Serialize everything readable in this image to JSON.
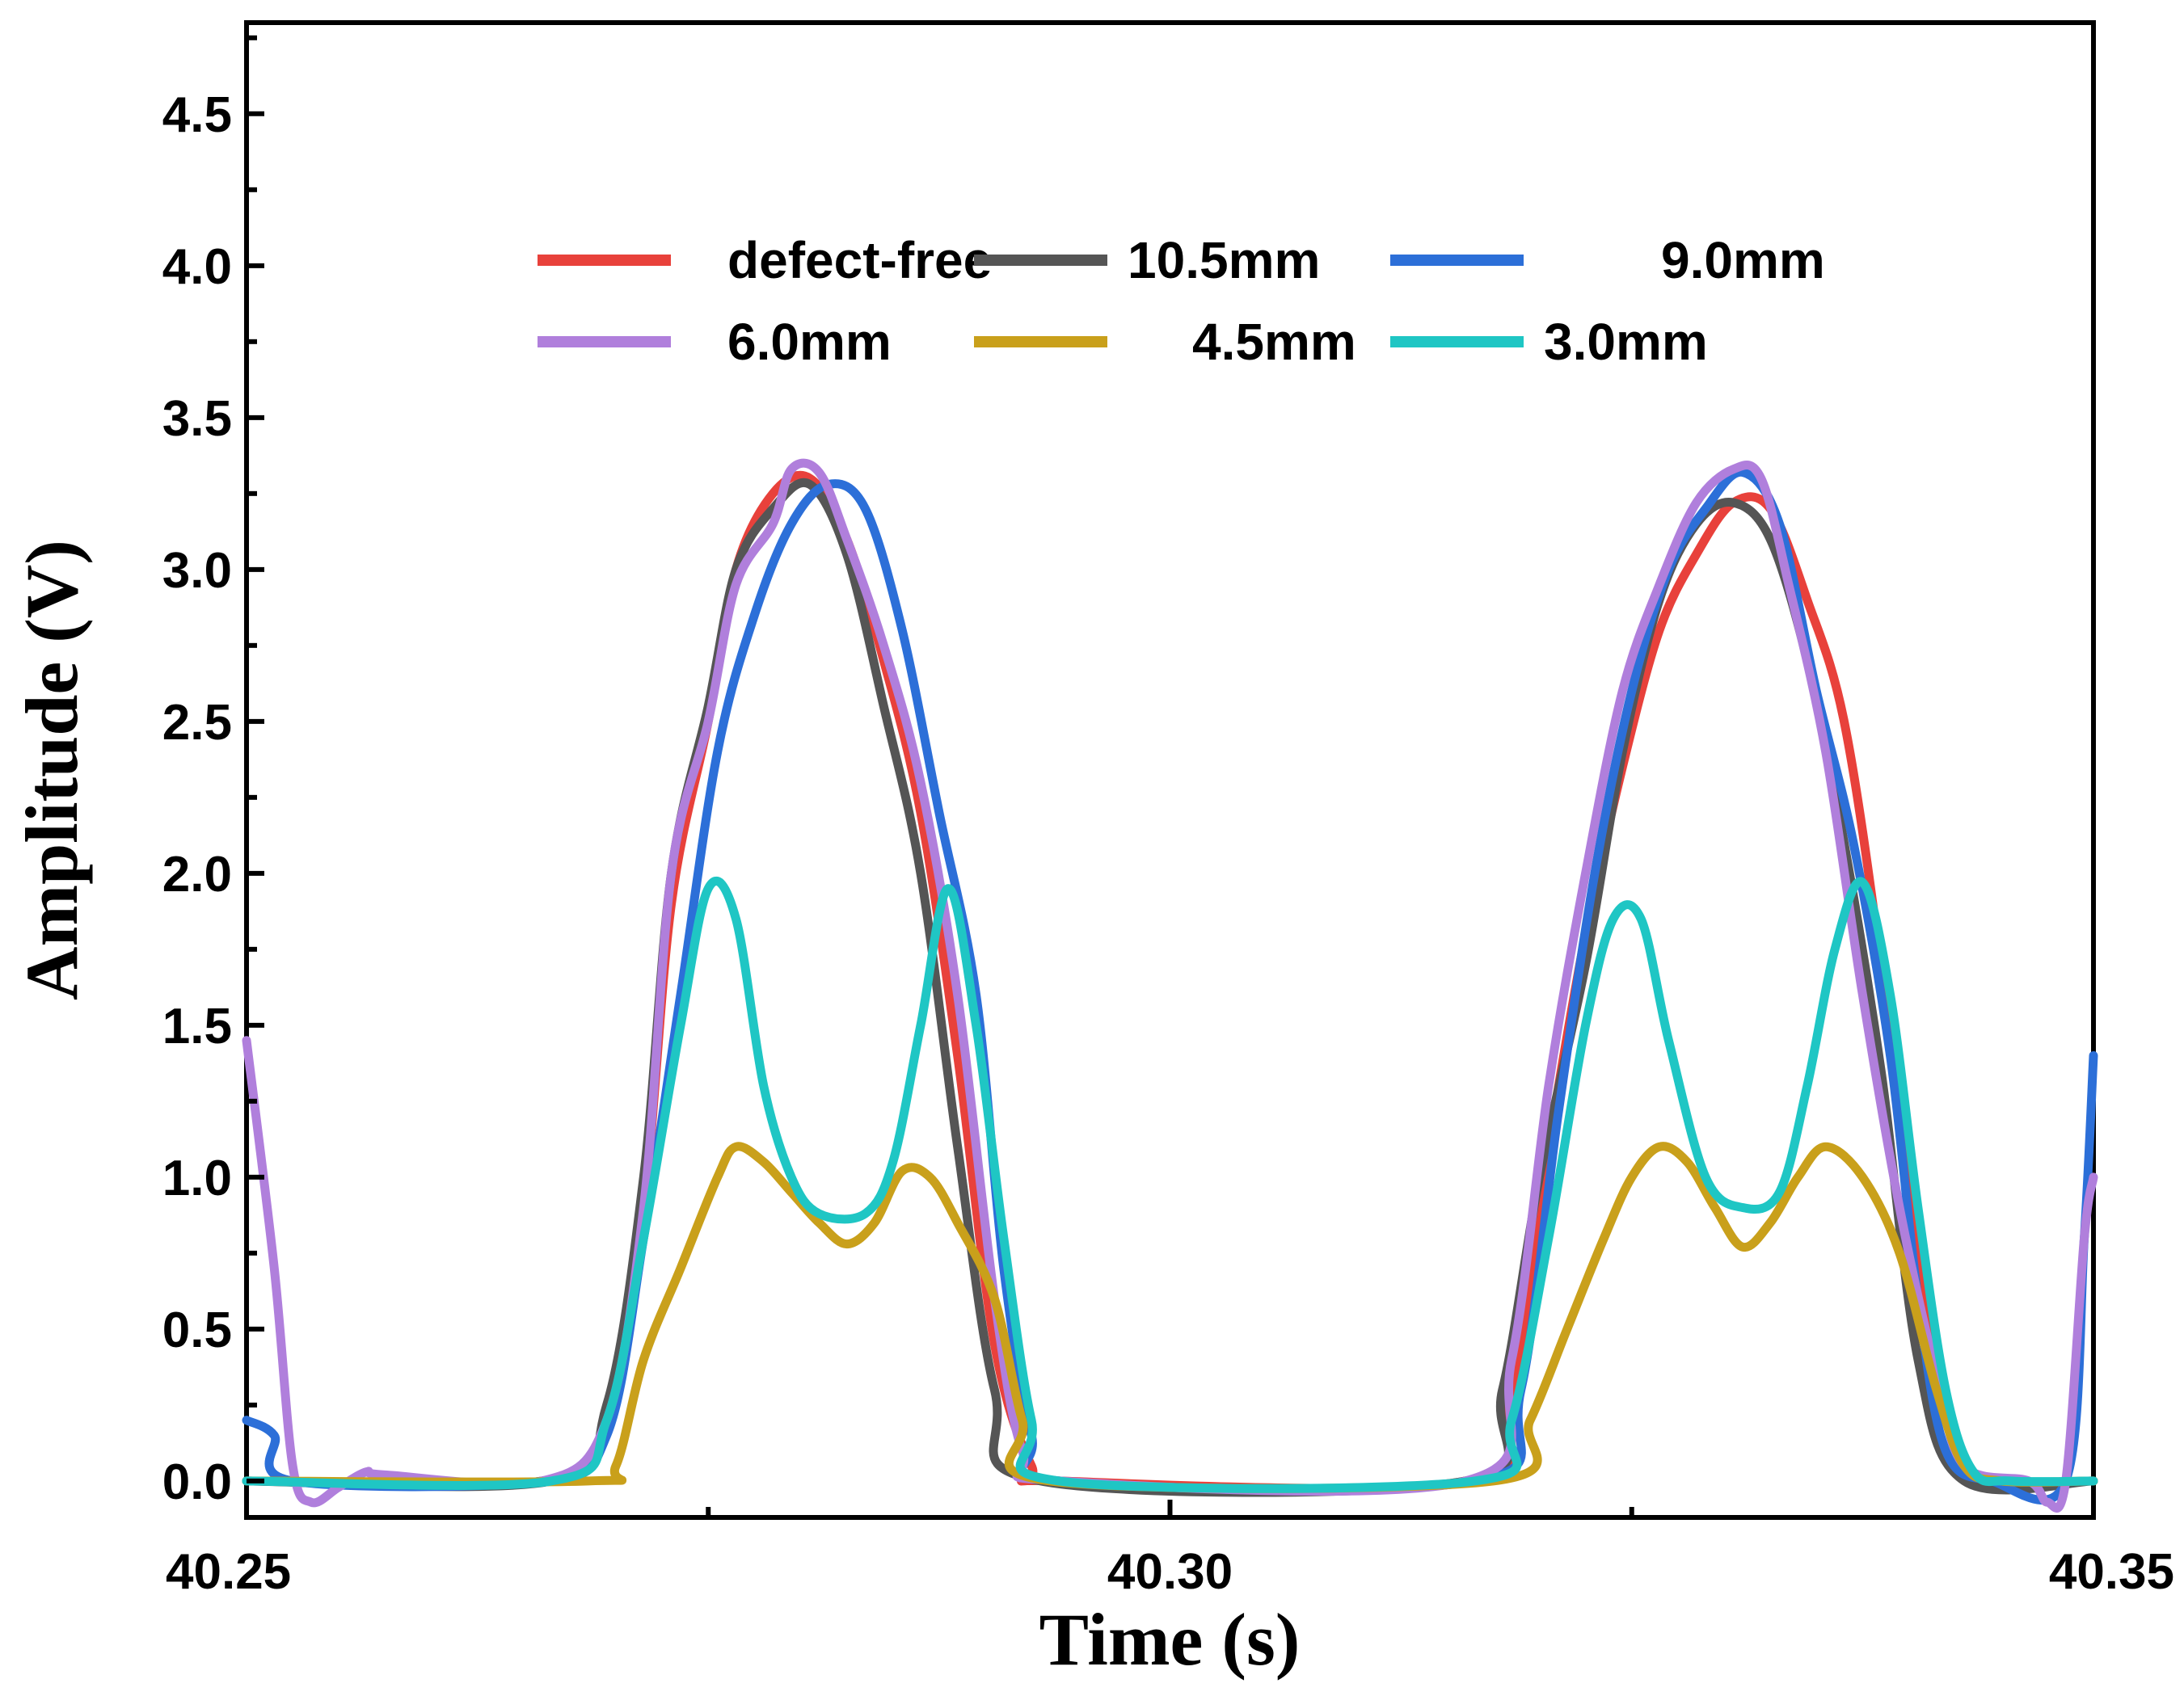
{
  "chart_data": {
    "type": "line",
    "xlabel": "Time (s)",
    "ylabel": "Amplitude (V)",
    "xlim": [
      40.25,
      40.35
    ],
    "ylim": [
      -0.12,
      4.8
    ],
    "x_ticks": [
      40.25,
      40.3,
      40.35
    ],
    "x_tick_labels": [
      "40.25",
      "40.30",
      "40.35"
    ],
    "x_minor_ticks": [
      40.275,
      40.325
    ],
    "y_ticks": [
      0.0,
      0.5,
      1.0,
      1.5,
      2.0,
      2.5,
      3.0,
      3.5,
      4.0,
      4.5
    ],
    "y_tick_labels": [
      "0.0",
      "0.5",
      "1.0",
      "1.5",
      "2.0",
      "2.5",
      "3.0",
      "3.5",
      "4.0",
      "4.5"
    ],
    "grid": false,
    "legend": {
      "placement": "top-center",
      "columns": 3
    },
    "series": [
      {
        "name": "defect-free",
        "color": "#e8413b",
        "points": [
          [
            40.25,
            0
          ],
          [
            40.266,
            0
          ],
          [
            40.2695,
            0.2
          ],
          [
            40.2715,
            0.9
          ],
          [
            40.273,
            1.9
          ],
          [
            40.275,
            2.5
          ],
          [
            40.2765,
            3.0
          ],
          [
            40.2785,
            3.25
          ],
          [
            40.2805,
            3.3
          ],
          [
            40.2825,
            3.1
          ],
          [
            40.2845,
            2.7
          ],
          [
            40.2865,
            2.2
          ],
          [
            40.2885,
            1.4
          ],
          [
            40.2905,
            0.45
          ],
          [
            40.2925,
            0.05
          ],
          [
            40.294,
            0
          ],
          [
            40.316,
            0
          ],
          [
            40.3185,
            0.3
          ],
          [
            40.3205,
            1.1
          ],
          [
            40.3225,
            1.8
          ],
          [
            40.3245,
            2.35
          ],
          [
            40.3265,
            2.8
          ],
          [
            40.3285,
            3.05
          ],
          [
            40.3305,
            3.22
          ],
          [
            40.3325,
            3.2
          ],
          [
            40.3345,
            2.9
          ],
          [
            40.3365,
            2.5
          ],
          [
            40.3385,
            1.7
          ],
          [
            40.3405,
            0.7
          ],
          [
            40.3425,
            0.1
          ],
          [
            40.344,
            0
          ],
          [
            40.35,
            0
          ]
        ]
      },
      {
        "name": "10.5mm",
        "color": "#555555",
        "points": [
          [
            40.25,
            0
          ],
          [
            40.2665,
            0
          ],
          [
            40.2695,
            0.25
          ],
          [
            40.2715,
            1.0
          ],
          [
            40.273,
            2.0
          ],
          [
            40.275,
            2.55
          ],
          [
            40.2765,
            3.0
          ],
          [
            40.2785,
            3.2
          ],
          [
            40.2805,
            3.28
          ],
          [
            40.2825,
            3.05
          ],
          [
            40.2845,
            2.55
          ],
          [
            40.2865,
            2.0
          ],
          [
            40.2885,
            1.1
          ],
          [
            40.2905,
            0.3
          ],
          [
            40.293,
            0
          ],
          [
            40.316,
            0
          ],
          [
            40.318,
            0.3
          ],
          [
            40.32,
            1.0
          ],
          [
            40.3225,
            1.7
          ],
          [
            40.3245,
            2.4
          ],
          [
            40.3265,
            2.9
          ],
          [
            40.3285,
            3.15
          ],
          [
            40.3305,
            3.22
          ],
          [
            40.3325,
            3.1
          ],
          [
            40.3345,
            2.7
          ],
          [
            40.3365,
            2.1
          ],
          [
            40.3385,
            1.35
          ],
          [
            40.3405,
            0.4
          ],
          [
            40.343,
            0
          ],
          [
            40.35,
            0
          ]
        ]
      },
      {
        "name": "9.0mm",
        "color": "#2c6fd8",
        "points": [
          [
            40.25,
            0.2
          ],
          [
            40.2515,
            0.15
          ],
          [
            40.2525,
            0
          ],
          [
            40.266,
            0
          ],
          [
            40.2695,
            0.15
          ],
          [
            40.2715,
            0.8
          ],
          [
            40.2735,
            1.6
          ],
          [
            40.2755,
            2.4
          ],
          [
            40.2775,
            2.85
          ],
          [
            40.2795,
            3.15
          ],
          [
            40.2815,
            3.28
          ],
          [
            40.2835,
            3.2
          ],
          [
            40.2855,
            2.8
          ],
          [
            40.2875,
            2.2
          ],
          [
            40.2895,
            1.6
          ],
          [
            40.291,
            0.7
          ],
          [
            40.2925,
            0.15
          ],
          [
            40.294,
            0
          ],
          [
            40.3165,
            0
          ],
          [
            40.319,
            0.3
          ],
          [
            40.321,
            1.2
          ],
          [
            40.323,
            2.0
          ],
          [
            40.325,
            2.6
          ],
          [
            40.327,
            3.0
          ],
          [
            40.329,
            3.2
          ],
          [
            40.331,
            3.32
          ],
          [
            40.333,
            3.15
          ],
          [
            40.335,
            2.6
          ],
          [
            40.337,
            2.1
          ],
          [
            40.339,
            1.4
          ],
          [
            40.3405,
            0.6
          ],
          [
            40.342,
            0.1
          ],
          [
            40.3445,
            0
          ],
          [
            40.3485,
            0
          ],
          [
            40.3495,
            0.8
          ],
          [
            40.35,
            1.4
          ]
        ]
      },
      {
        "name": "6.0mm",
        "color": "#b07fdc",
        "points": [
          [
            40.25,
            1.45
          ],
          [
            40.2515,
            0.7
          ],
          [
            40.2525,
            0.05
          ],
          [
            40.2535,
            -0.07
          ],
          [
            40.255,
            -0.02
          ],
          [
            40.2565,
            0.03
          ],
          [
            40.2575,
            0.02
          ],
          [
            40.266,
            0
          ],
          [
            40.2695,
            0.2
          ],
          [
            40.2715,
            0.9
          ],
          [
            40.273,
            2.0
          ],
          [
            40.275,
            2.5
          ],
          [
            40.2765,
            2.95
          ],
          [
            40.2785,
            3.15
          ],
          [
            40.2795,
            3.33
          ],
          [
            40.281,
            3.32
          ],
          [
            40.2825,
            3.1
          ],
          [
            40.2845,
            2.75
          ],
          [
            40.2865,
            2.3
          ],
          [
            40.2885,
            1.6
          ],
          [
            40.2905,
            0.6
          ],
          [
            40.292,
            0.1
          ],
          [
            40.294,
            0
          ],
          [
            40.316,
            0
          ],
          [
            40.3185,
            0.4
          ],
          [
            40.3205,
            1.3
          ],
          [
            40.3225,
            2.0
          ],
          [
            40.3245,
            2.6
          ],
          [
            40.3265,
            2.95
          ],
          [
            40.3285,
            3.22
          ],
          [
            40.3305,
            3.33
          ],
          [
            40.332,
            3.3
          ],
          [
            40.3335,
            2.95
          ],
          [
            40.3355,
            2.4
          ],
          [
            40.3375,
            1.6
          ],
          [
            40.3395,
            0.9
          ],
          [
            40.3415,
            0.35
          ],
          [
            40.343,
            0.05
          ],
          [
            40.3465,
            0
          ],
          [
            40.3475,
            -0.07
          ],
          [
            40.3485,
            0
          ],
          [
            40.3495,
            0.8
          ],
          [
            40.35,
            1.0
          ]
        ]
      },
      {
        "name": "4.5mm",
        "color": "#c9a01b",
        "points": [
          [
            40.25,
            0
          ],
          [
            40.2685,
            0
          ],
          [
            40.27,
            0.05
          ],
          [
            40.2715,
            0.4
          ],
          [
            40.2735,
            0.7
          ],
          [
            40.2755,
            1.0
          ],
          [
            40.2765,
            1.1
          ],
          [
            40.278,
            1.05
          ],
          [
            40.2795,
            0.95
          ],
          [
            40.281,
            0.85
          ],
          [
            40.2825,
            0.78
          ],
          [
            40.284,
            0.85
          ],
          [
            40.2855,
            1.02
          ],
          [
            40.287,
            1.0
          ],
          [
            40.2885,
            0.85
          ],
          [
            40.2905,
            0.6
          ],
          [
            40.292,
            0.2
          ],
          [
            40.2935,
            0
          ],
          [
            40.3175,
            0
          ],
          [
            40.3195,
            0.2
          ],
          [
            40.3215,
            0.5
          ],
          [
            40.3235,
            0.8
          ],
          [
            40.325,
            1.0
          ],
          [
            40.3265,
            1.1
          ],
          [
            40.328,
            1.05
          ],
          [
            40.3295,
            0.9
          ],
          [
            40.331,
            0.77
          ],
          [
            40.3325,
            0.85
          ],
          [
            40.334,
            1.0
          ],
          [
            40.3355,
            1.1
          ],
          [
            40.3375,
            1.0
          ],
          [
            40.3395,
            0.75
          ],
          [
            40.3415,
            0.3
          ],
          [
            40.343,
            0.05
          ],
          [
            40.345,
            0
          ],
          [
            40.35,
            0
          ]
        ]
      },
      {
        "name": "3.0mm",
        "color": "#1fc6c4",
        "points": [
          [
            40.25,
            0
          ],
          [
            40.2665,
            0
          ],
          [
            40.2695,
            0.2
          ],
          [
            40.2715,
            0.8
          ],
          [
            40.2735,
            1.5
          ],
          [
            40.275,
            1.95
          ],
          [
            40.2765,
            1.85
          ],
          [
            40.278,
            1.3
          ],
          [
            40.2795,
            1.0
          ],
          [
            40.281,
            0.88
          ],
          [
            40.2835,
            0.88
          ],
          [
            40.285,
            1.05
          ],
          [
            40.2865,
            1.5
          ],
          [
            40.288,
            1.95
          ],
          [
            40.2895,
            1.5
          ],
          [
            40.291,
            0.8
          ],
          [
            40.2925,
            0.2
          ],
          [
            40.294,
            0
          ],
          [
            40.3165,
            0
          ],
          [
            40.3185,
            0.2
          ],
          [
            40.3205,
            0.8
          ],
          [
            40.3225,
            1.5
          ],
          [
            40.324,
            1.85
          ],
          [
            40.3255,
            1.85
          ],
          [
            40.327,
            1.45
          ],
          [
            40.329,
            1.0
          ],
          [
            40.331,
            0.9
          ],
          [
            40.333,
            0.95
          ],
          [
            40.3345,
            1.3
          ],
          [
            40.336,
            1.75
          ],
          [
            40.3375,
            1.97
          ],
          [
            40.339,
            1.6
          ],
          [
            40.3405,
            0.9
          ],
          [
            40.342,
            0.3
          ],
          [
            40.3435,
            0.03
          ],
          [
            40.3455,
            0
          ],
          [
            40.35,
            0
          ]
        ]
      }
    ]
  }
}
